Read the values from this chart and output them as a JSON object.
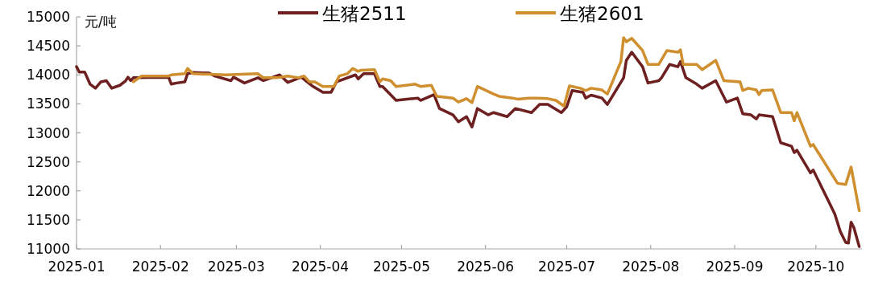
{
  "chart_data": {
    "type": "line",
    "ylabel": "元/吨",
    "legend": "top",
    "xlim": [
      "2025-01-01",
      "2025-10-18"
    ],
    "xticks": [
      {
        "value": "2025-01-01",
        "label": "2025-01"
      },
      {
        "value": "2025-02-01",
        "label": "2025-02"
      },
      {
        "value": "2025-03-01",
        "label": "2025-03"
      },
      {
        "value": "2025-04-01",
        "label": "2025-04"
      },
      {
        "value": "2025-05-01",
        "label": "2025-05"
      },
      {
        "value": "2025-06-01",
        "label": "2025-06"
      },
      {
        "value": "2025-07-01",
        "label": "2025-07"
      },
      {
        "value": "2025-08-01",
        "label": "2025-08"
      },
      {
        "value": "2025-09-01",
        "label": "2025-09"
      },
      {
        "value": "2025-10-01",
        "label": "2025-10"
      }
    ],
    "ylim": [
      11000,
      15000
    ],
    "yticks": [
      11000,
      11500,
      12000,
      12500,
      13000,
      13500,
      14000,
      14500,
      15000
    ],
    "series": [
      {
        "name": "生猪2511",
        "color": "#6e1f1f",
        "x": [
          "2025-01-01",
          "2025-01-02",
          "2025-01-04",
          "2025-01-06",
          "2025-01-08",
          "2025-01-10",
          "2025-01-12",
          "2025-01-14",
          "2025-01-17",
          "2025-01-19",
          "2025-01-20",
          "2025-01-21",
          "2025-01-22",
          "2025-02-04",
          "2025-02-05",
          "2025-02-07",
          "2025-02-10",
          "2025-02-11",
          "2025-02-13",
          "2025-02-19",
          "2025-02-21",
          "2025-02-27",
          "2025-02-28",
          "2025-03-04",
          "2025-03-09",
          "2025-03-11",
          "2025-03-17",
          "2025-03-20",
          "2025-03-25",
          "2025-03-29",
          "2025-04-02",
          "2025-04-05",
          "2025-04-07",
          "2025-04-14",
          "2025-04-15",
          "2025-04-17",
          "2025-04-21",
          "2025-04-23",
          "2025-04-24",
          "2025-04-29",
          "2025-05-07",
          "2025-05-08",
          "2025-05-13",
          "2025-05-15",
          "2025-05-20",
          "2025-05-22",
          "2025-05-25",
          "2025-05-27",
          "2025-05-29",
          "2025-06-02",
          "2025-06-04",
          "2025-06-09",
          "2025-06-12",
          "2025-06-18",
          "2025-06-21",
          "2025-06-24",
          "2025-06-29",
          "2025-07-01",
          "2025-07-03",
          "2025-07-07",
          "2025-07-08",
          "2025-07-10",
          "2025-07-14",
          "2025-07-16",
          "2025-07-22",
          "2025-07-23",
          "2025-07-25",
          "2025-07-29",
          "2025-07-31",
          "2025-08-04",
          "2025-08-05",
          "2025-08-08",
          "2025-08-11",
          "2025-08-12",
          "2025-08-14",
          "2025-08-18",
          "2025-08-20",
          "2025-08-25",
          "2025-08-29",
          "2025-09-02",
          "2025-09-04",
          "2025-09-07",
          "2025-09-09",
          "2025-09-10",
          "2025-09-15",
          "2025-09-18",
          "2025-09-22",
          "2025-09-23",
          "2025-09-24",
          "2025-09-29",
          "2025-09-30",
          "2025-10-08",
          "2025-10-10",
          "2025-10-12",
          "2025-10-13",
          "2025-10-14",
          "2025-10-15",
          "2025-10-17"
        ],
        "values": [
          14140,
          14050,
          14050,
          13840,
          13770,
          13880,
          13900,
          13770,
          13820,
          13890,
          13960,
          13900,
          13950,
          13960,
          13840,
          13860,
          13880,
          14020,
          14040,
          14030,
          13980,
          13900,
          13960,
          13860,
          13950,
          13900,
          14000,
          13870,
          13960,
          13810,
          13700,
          13700,
          13880,
          14000,
          13930,
          14020,
          14020,
          13800,
          13800,
          13560,
          13600,
          13560,
          13660,
          13420,
          13310,
          13190,
          13280,
          13100,
          13420,
          13310,
          13350,
          13280,
          13420,
          13350,
          13490,
          13490,
          13350,
          13450,
          13730,
          13700,
          13600,
          13650,
          13600,
          13490,
          13950,
          14250,
          14390,
          14140,
          13860,
          13900,
          13950,
          14180,
          14140,
          14230,
          13950,
          13840,
          13770,
          13900,
          13530,
          13600,
          13330,
          13310,
          13240,
          13310,
          13280,
          12830,
          12770,
          12660,
          12700,
          12310,
          12360,
          11600,
          11300,
          11110,
          11100,
          11460,
          11370,
          11040
        ]
      },
      {
        "name": "生猪2601",
        "color": "#d08f2e",
        "x": [
          "2025-01-22",
          "2025-01-25",
          "2025-02-04",
          "2025-02-05",
          "2025-02-10",
          "2025-02-11",
          "2025-02-13",
          "2025-02-25",
          "2025-03-09",
          "2025-03-11",
          "2025-03-16",
          "2025-03-20",
          "2025-03-24",
          "2025-03-26",
          "2025-03-28",
          "2025-03-30",
          "2025-04-02",
          "2025-04-06",
          "2025-04-08",
          "2025-04-11",
          "2025-04-13",
          "2025-04-15",
          "2025-04-16",
          "2025-04-21",
          "2025-04-23",
          "2025-04-24",
          "2025-04-27",
          "2025-04-29",
          "2025-05-06",
          "2025-05-08",
          "2025-05-12",
          "2025-05-14",
          "2025-05-20",
          "2025-05-22",
          "2025-05-25",
          "2025-05-27",
          "2025-05-29",
          "2025-06-04",
          "2025-06-06",
          "2025-06-11",
          "2025-06-13",
          "2025-06-17",
          "2025-06-20",
          "2025-06-24",
          "2025-06-27",
          "2025-06-30",
          "2025-07-02",
          "2025-07-06",
          "2025-07-08",
          "2025-07-10",
          "2025-07-14",
          "2025-07-16",
          "2025-07-21",
          "2025-07-22",
          "2025-07-23",
          "2025-07-25",
          "2025-07-29",
          "2025-07-31",
          "2025-08-04",
          "2025-08-07",
          "2025-08-11",
          "2025-08-12",
          "2025-08-13",
          "2025-08-18",
          "2025-08-20",
          "2025-08-25",
          "2025-08-28",
          "2025-09-03",
          "2025-09-04",
          "2025-09-06",
          "2025-09-09",
          "2025-09-10",
          "2025-09-11",
          "2025-09-15",
          "2025-09-18",
          "2025-09-22",
          "2025-09-23",
          "2025-09-24",
          "2025-09-29",
          "2025-09-30",
          "2025-10-09",
          "2025-10-12",
          "2025-10-14",
          "2025-10-17"
        ],
        "values": [
          13880,
          13980,
          13980,
          14000,
          14020,
          14110,
          14020,
          14000,
          14020,
          13950,
          13950,
          13980,
          13950,
          13980,
          13880,
          13880,
          13800,
          13800,
          13980,
          14020,
          14110,
          14060,
          14080,
          14090,
          13880,
          13930,
          13900,
          13800,
          13840,
          13800,
          13820,
          13630,
          13600,
          13530,
          13590,
          13520,
          13800,
          13670,
          13630,
          13600,
          13580,
          13600,
          13600,
          13590,
          13560,
          13460,
          13810,
          13770,
          13730,
          13770,
          13740,
          13670,
          14230,
          14640,
          14570,
          14630,
          14420,
          14180,
          14180,
          14420,
          14390,
          14430,
          14180,
          14180,
          14090,
          14250,
          13900,
          13880,
          13730,
          13770,
          13740,
          13660,
          13730,
          13740,
          13350,
          13350,
          13210,
          13350,
          12770,
          12800,
          12130,
          12110,
          12410,
          11660
        ]
      }
    ]
  }
}
